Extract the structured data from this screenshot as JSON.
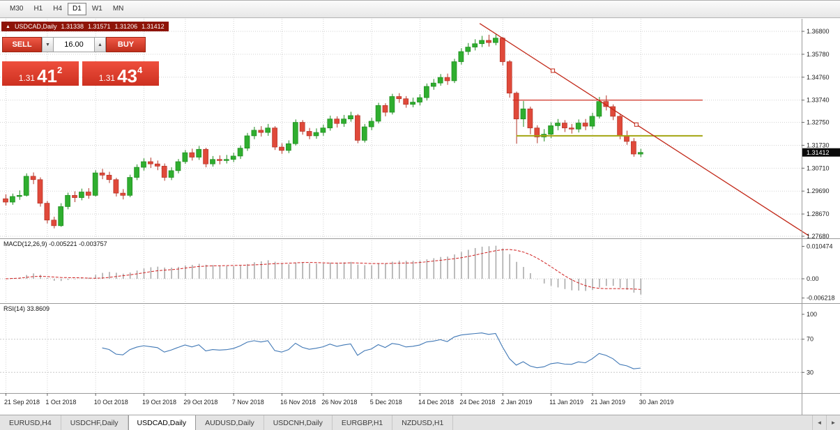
{
  "toolbar": {
    "timeframes": [
      {
        "label": "M30",
        "active": false
      },
      {
        "label": "H1",
        "active": false
      },
      {
        "label": "H4",
        "active": false
      },
      {
        "label": "D1",
        "active": true
      },
      {
        "label": "W1",
        "active": false
      },
      {
        "label": "MN",
        "active": false
      }
    ]
  },
  "symbol_bar": {
    "collapse_icon": "▲",
    "symbol": "USDCAD,Daily",
    "open": "1.31338",
    "high": "1.31571",
    "low": "1.31206",
    "close": "1.31412"
  },
  "trade_panel": {
    "sell_label": "SELL",
    "buy_label": "BUY",
    "volume": "16.00",
    "volume_down_icon": "▼",
    "volume_up_icon": "▲",
    "sell_price_main": "1.31",
    "sell_price_big": "41",
    "sell_price_sup": "2",
    "buy_price_main": "1.31",
    "buy_price_big": "43",
    "buy_price_sup": "4"
  },
  "tab_bar": {
    "scroll_left": "◄",
    "scroll_right": "►",
    "items": [
      {
        "label": "EURUSD,H4",
        "active": false
      },
      {
        "label": "USDCHF,Daily",
        "active": false
      },
      {
        "label": "USDCAD,Daily",
        "active": true
      },
      {
        "label": "AUDUSD,Daily",
        "active": false
      },
      {
        "label": "USDCNH,Daily",
        "active": false
      },
      {
        "label": "EURGBP,H1",
        "active": false
      },
      {
        "label": "NZDUSD,H1",
        "active": false
      }
    ]
  },
  "chart_data": {
    "type": "candlestick",
    "title": "USDCAD,Daily",
    "candles": [
      [
        1.2935,
        1.2955,
        1.2905,
        1.292
      ],
      [
        1.292,
        1.2958,
        1.2908,
        1.2945
      ],
      [
        1.2945,
        1.2972,
        1.293,
        1.295
      ],
      [
        1.295,
        1.3048,
        1.2945,
        1.3035
      ],
      [
        1.3035,
        1.3052,
        1.3,
        1.302
      ],
      [
        1.302,
        1.303,
        1.29,
        1.2915
      ],
      [
        1.2915,
        1.2925,
        1.2825,
        1.284
      ],
      [
        1.284,
        1.2855,
        1.2803,
        1.2815
      ],
      [
        1.2815,
        1.2915,
        1.281,
        1.29
      ],
      [
        1.29,
        1.2962,
        1.2888,
        1.295
      ],
      [
        1.295,
        1.2968,
        1.292,
        1.294
      ],
      [
        1.294,
        1.298,
        1.2928,
        1.2965
      ],
      [
        1.2965,
        1.2982,
        1.2935,
        1.295
      ],
      [
        1.295,
        1.3062,
        1.2945,
        1.305
      ],
      [
        1.305,
        1.3068,
        1.3022,
        1.304
      ],
      [
        1.304,
        1.3055,
        1.3005,
        1.302
      ],
      [
        1.302,
        1.3028,
        1.2945,
        1.296
      ],
      [
        1.296,
        1.2978,
        1.2932,
        1.295
      ],
      [
        1.295,
        1.3042,
        1.2942,
        1.303
      ],
      [
        1.303,
        1.3088,
        1.3018,
        1.3075
      ],
      [
        1.3075,
        1.3115,
        1.306,
        1.31
      ],
      [
        1.31,
        1.3118,
        1.3072,
        1.309
      ],
      [
        1.309,
        1.3105,
        1.3062,
        1.308
      ],
      [
        1.308,
        1.3092,
        1.3015,
        1.303
      ],
      [
        1.303,
        1.3075,
        1.3018,
        1.306
      ],
      [
        1.306,
        1.3112,
        1.3048,
        1.31
      ],
      [
        1.31,
        1.3152,
        1.309,
        1.314
      ],
      [
        1.314,
        1.3158,
        1.3105,
        1.312
      ],
      [
        1.312,
        1.317,
        1.3108,
        1.3155
      ],
      [
        1.3155,
        1.3162,
        1.3075,
        1.309
      ],
      [
        1.309,
        1.3125,
        1.3078,
        1.311
      ],
      [
        1.311,
        1.3128,
        1.3088,
        1.3105
      ],
      [
        1.3105,
        1.313,
        1.3092,
        1.311
      ],
      [
        1.311,
        1.314,
        1.3098,
        1.3125
      ],
      [
        1.3125,
        1.3172,
        1.3112,
        1.316
      ],
      [
        1.316,
        1.3228,
        1.3148,
        1.3215
      ],
      [
        1.3215,
        1.3255,
        1.32,
        1.324
      ],
      [
        1.324,
        1.3258,
        1.3212,
        1.323
      ],
      [
        1.323,
        1.3268,
        1.3215,
        1.325
      ],
      [
        1.325,
        1.3258,
        1.3152,
        1.3165
      ],
      [
        1.3165,
        1.3182,
        1.3135,
        1.315
      ],
      [
        1.315,
        1.3195,
        1.3138,
        1.318
      ],
      [
        1.318,
        1.3288,
        1.3172,
        1.3275
      ],
      [
        1.3275,
        1.3285,
        1.322,
        1.3235
      ],
      [
        1.3235,
        1.325,
        1.32,
        1.3215
      ],
      [
        1.3215,
        1.3248,
        1.3202,
        1.323
      ],
      [
        1.323,
        1.3265,
        1.3215,
        1.325
      ],
      [
        1.325,
        1.3305,
        1.3238,
        1.329
      ],
      [
        1.329,
        1.3302,
        1.3252,
        1.327
      ],
      [
        1.327,
        1.3308,
        1.3255,
        1.329
      ],
      [
        1.329,
        1.3322,
        1.3278,
        1.3305
      ],
      [
        1.3305,
        1.3312,
        1.3182,
        1.3195
      ],
      [
        1.3195,
        1.3268,
        1.3185,
        1.3255
      ],
      [
        1.3255,
        1.3295,
        1.324,
        1.328
      ],
      [
        1.328,
        1.3362,
        1.327,
        1.335
      ],
      [
        1.335,
        1.336,
        1.3302,
        1.332
      ],
      [
        1.332,
        1.3402,
        1.331,
        1.339
      ],
      [
        1.339,
        1.3405,
        1.3362,
        1.338
      ],
      [
        1.338,
        1.3392,
        1.334,
        1.3355
      ],
      [
        1.3355,
        1.3385,
        1.3342,
        1.3365
      ],
      [
        1.3365,
        1.34,
        1.335,
        1.3385
      ],
      [
        1.3385,
        1.3448,
        1.3372,
        1.3435
      ],
      [
        1.3435,
        1.3468,
        1.342,
        1.345
      ],
      [
        1.345,
        1.349,
        1.3438,
        1.3475
      ],
      [
        1.3475,
        1.3492,
        1.3442,
        1.346
      ],
      [
        1.346,
        1.3558,
        1.345,
        1.3545
      ],
      [
        1.3545,
        1.3605,
        1.3532,
        1.359
      ],
      [
        1.359,
        1.3628,
        1.3575,
        1.361
      ],
      [
        1.361,
        1.3645,
        1.3595,
        1.3625
      ],
      [
        1.3625,
        1.366,
        1.361,
        1.364
      ],
      [
        1.364,
        1.3665,
        1.3612,
        1.363
      ],
      [
        1.363,
        1.3668,
        1.3618,
        1.365
      ],
      [
        1.365,
        1.3655,
        1.3528,
        1.3545
      ],
      [
        1.3545,
        1.3552,
        1.3385,
        1.3405
      ],
      [
        1.3405,
        1.3412,
        1.318,
        1.329
      ],
      [
        1.329,
        1.337,
        1.3255,
        1.3335
      ],
      [
        1.3335,
        1.3345,
        1.3222,
        1.325
      ],
      [
        1.325,
        1.3262,
        1.3182,
        1.321
      ],
      [
        1.321,
        1.3245,
        1.319,
        1.3222
      ],
      [
        1.3222,
        1.3275,
        1.3205,
        1.326
      ],
      [
        1.326,
        1.329,
        1.324,
        1.3272
      ],
      [
        1.3272,
        1.3285,
        1.3232,
        1.325
      ],
      [
        1.325,
        1.3268,
        1.3225,
        1.3245
      ],
      [
        1.3245,
        1.3288,
        1.323,
        1.3272
      ],
      [
        1.3272,
        1.329,
        1.324,
        1.3258
      ],
      [
        1.3258,
        1.3318,
        1.3245,
        1.3302
      ],
      [
        1.3302,
        1.3388,
        1.3292,
        1.3368
      ],
      [
        1.3368,
        1.3395,
        1.3328,
        1.3345
      ],
      [
        1.3345,
        1.3355,
        1.3285,
        1.3302
      ],
      [
        1.3302,
        1.331,
        1.32,
        1.3215
      ],
      [
        1.3215,
        1.3238,
        1.3175,
        1.319
      ],
      [
        1.319,
        1.3205,
        1.3122,
        1.3134
      ],
      [
        1.31338,
        1.31571,
        1.31206,
        1.31412
      ]
    ],
    "x_labels": [
      {
        "i": 0,
        "t": "21 Sep 2018"
      },
      {
        "i": 6,
        "t": "1 Oct 2018"
      },
      {
        "i": 13,
        "t": "10 Oct 2018"
      },
      {
        "i": 20,
        "t": "19 Oct 2018"
      },
      {
        "i": 26,
        "t": "29 Oct 2018"
      },
      {
        "i": 33,
        "t": "7 Nov 2018"
      },
      {
        "i": 40,
        "t": "16 Nov 2018"
      },
      {
        "i": 46,
        "t": "26 Nov 2018"
      },
      {
        "i": 53,
        "t": "5 Dec 2018"
      },
      {
        "i": 60,
        "t": "14 Dec 2018"
      },
      {
        "i": 66,
        "t": "24 Dec 2018"
      },
      {
        "i": 72,
        "t": "2 Jan 2019"
      },
      {
        "i": 79,
        "t": "11 Jan 2019"
      },
      {
        "i": 85,
        "t": "21 Jan 2019"
      },
      {
        "i": 92,
        "t": "30 Jan 2019"
      }
    ],
    "y_axis": {
      "labels": [
        "1.36800",
        "1.35780",
        "1.34760",
        "1.33740",
        "1.32750",
        "1.31730",
        "1.30710",
        "1.29690",
        "1.28670",
        "1.27680"
      ],
      "values": [
        1.368,
        1.3578,
        1.3476,
        1.3374,
        1.3275,
        1.3173,
        1.3071,
        1.2969,
        1.2867,
        1.2768
      ]
    },
    "price_label": {
      "value": 1.31412,
      "text": "1.31412"
    },
    "overlays": {
      "trendline": {
        "color": "#c22818",
        "from": {
          "index": 68.7,
          "price": 1.3715
        },
        "to": {
          "index": 116.4,
          "price": 1.277
        },
        "handles": [
          {
            "index": 79.3,
            "price": 1.3505
          },
          {
            "index": 91.4,
            "price": 1.3265
          }
        ]
      },
      "hlines": [
        {
          "price": 1.3374,
          "from_index": 73.5,
          "to_index": 101,
          "color": "#d03226",
          "width": 1.3
        },
        {
          "price": 1.3215,
          "from_index": 74.0,
          "to_index": 101,
          "color": "#a3a410",
          "width": 2
        }
      ]
    },
    "indicators": {
      "macd": {
        "fast": 12,
        "slow": 26,
        "signal": 9,
        "label_full": "MACD(12,26,9) -0.005221 -0.003757",
        "axis": [
          {
            "v": 0.010474,
            "t": "0.010474"
          },
          {
            "v": 0,
            "t": "0.00"
          },
          {
            "v": -0.006218,
            "t": "-0.006218"
          }
        ]
      },
      "rsi": {
        "period": 14,
        "label_full": "RSI(14) 33.8609",
        "levels": [
          {
            "v": 100,
            "t": "100",
            "line": false
          },
          {
            "v": 70,
            "t": "70",
            "line": true
          },
          {
            "v": 30,
            "t": "30",
            "line": true
          }
        ]
      }
    },
    "colors": {
      "up": "#2fae2f",
      "up_stroke": "#1d8a1d",
      "down": "#e0493a",
      "down_stroke": "#b23226",
      "grid": "#d2d2d2",
      "separator": "#9a9a9a",
      "macd_hist": "#ababab",
      "macd_signal": "#d02020",
      "rsi_line": "#3f77b5",
      "bid_label_bg": "#0a0a0a",
      "bid_label_fg": "#ffffff"
    }
  }
}
